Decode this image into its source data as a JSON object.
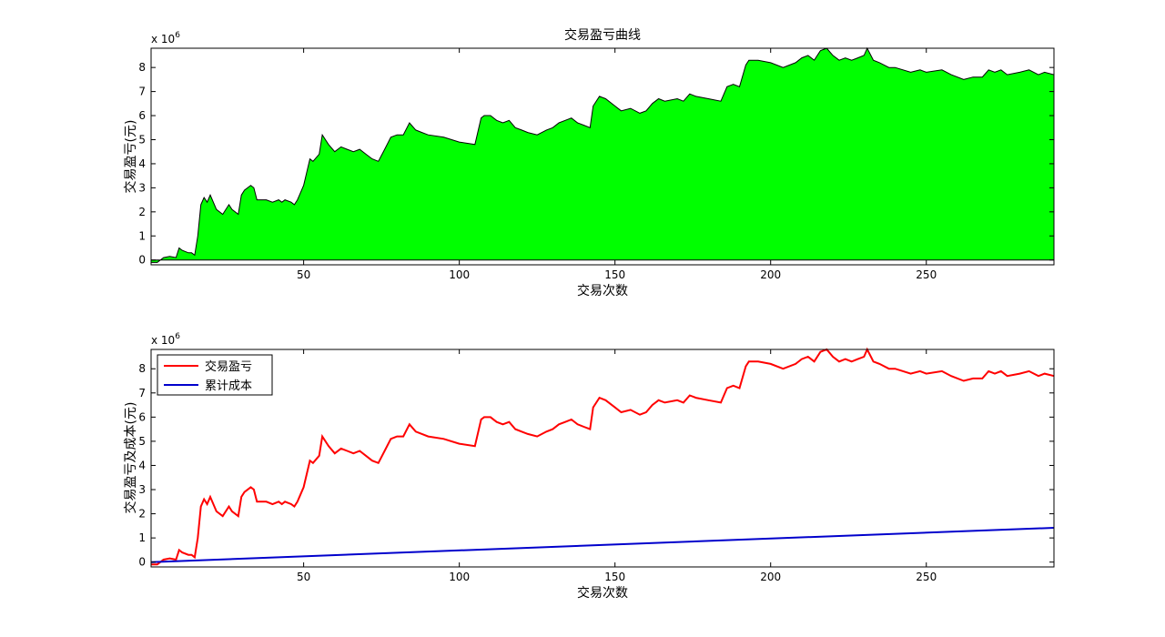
{
  "chart_data": [
    {
      "type": "area",
      "title": "交易盈亏曲线",
      "xlabel": "交易次数",
      "ylabel": "交易盈亏(元)",
      "scale_text": "x 10",
      "scale_exp": "6",
      "xlim": [
        1,
        291
      ],
      "ylim": [
        -0.2,
        8.8
      ],
      "x_ticks": [
        "50",
        "100",
        "150",
        "200",
        "250"
      ],
      "y_ticks": [
        "0",
        "1",
        "2",
        "3",
        "4",
        "5",
        "6",
        "7",
        "8"
      ],
      "grid": false,
      "fill_color": "#00ff00",
      "edge_color": "#000000",
      "series": [
        {
          "x": [
            1,
            3,
            5,
            7,
            9,
            10,
            11,
            13,
            14,
            15,
            16,
            17,
            18,
            19,
            20,
            22,
            24,
            26,
            27,
            29,
            30,
            31,
            33,
            34,
            35,
            38,
            40,
            42,
            43,
            44,
            46,
            47,
            48,
            49,
            50,
            52,
            53,
            55,
            56,
            58,
            60,
            62,
            64,
            66,
            68,
            70,
            72,
            74,
            76,
            78,
            80,
            82,
            84,
            86,
            88,
            90,
            95,
            100,
            105,
            107,
            108,
            110,
            112,
            114,
            116,
            118,
            120,
            122,
            125,
            128,
            130,
            132,
            134,
            136,
            138,
            140,
            142,
            143,
            145,
            147,
            150,
            152,
            155,
            158,
            160,
            162,
            164,
            166,
            170,
            172,
            174,
            176,
            180,
            184,
            186,
            188,
            190,
            192,
            193,
            196,
            200,
            204,
            208,
            210,
            212,
            214,
            216,
            218,
            220,
            222,
            224,
            226,
            228,
            230,
            231,
            233,
            235,
            238,
            240,
            245,
            248,
            250,
            255,
            258,
            262,
            265,
            268,
            270,
            272,
            274,
            276,
            280,
            283,
            286,
            288,
            291
          ],
          "values": [
            -0.1,
            -0.1,
            0.1,
            0.15,
            0.1,
            0.5,
            0.4,
            0.3,
            0.3,
            0.2,
            1.0,
            2.3,
            2.6,
            2.4,
            2.7,
            2.1,
            1.9,
            2.3,
            2.1,
            1.9,
            2.7,
            2.9,
            3.1,
            3.0,
            2.5,
            2.5,
            2.4,
            2.5,
            2.4,
            2.5,
            2.4,
            2.3,
            2.5,
            2.8,
            3.1,
            4.2,
            4.1,
            4.4,
            5.2,
            4.8,
            4.5,
            4.7,
            4.6,
            4.5,
            4.6,
            4.4,
            4.2,
            4.1,
            4.6,
            5.1,
            5.2,
            5.2,
            5.7,
            5.4,
            5.3,
            5.2,
            5.1,
            4.9,
            4.8,
            5.9,
            6.0,
            6.0,
            5.8,
            5.7,
            5.8,
            5.5,
            5.4,
            5.3,
            5.2,
            5.4,
            5.5,
            5.7,
            5.8,
            5.9,
            5.7,
            5.6,
            5.5,
            6.4,
            6.8,
            6.7,
            6.4,
            6.2,
            6.3,
            6.1,
            6.2,
            6.5,
            6.7,
            6.6,
            6.7,
            6.6,
            6.9,
            6.8,
            6.7,
            6.6,
            7.2,
            7.3,
            7.2,
            8.1,
            8.3,
            8.3,
            8.2,
            8.0,
            8.2,
            8.4,
            8.5,
            8.3,
            8.7,
            8.8,
            8.5,
            8.3,
            8.4,
            8.3,
            8.4,
            8.5,
            8.8,
            8.3,
            8.2,
            8.0,
            8.0,
            7.8,
            7.9,
            7.8,
            7.9,
            7.7,
            7.5,
            7.6,
            7.6,
            7.9,
            7.8,
            7.9,
            7.7,
            7.8,
            7.9,
            7.7,
            7.8,
            7.7
          ]
        }
      ]
    },
    {
      "type": "line",
      "title": "",
      "xlabel": "交易次数",
      "ylabel": "交易盈亏及成本(元)",
      "scale_text": "x 10",
      "scale_exp": "6",
      "xlim": [
        1,
        291
      ],
      "ylim": [
        -0.2,
        8.8
      ],
      "x_ticks": [
        "50",
        "100",
        "150",
        "200",
        "250"
      ],
      "y_ticks": [
        "0",
        "1",
        "2",
        "3",
        "4",
        "5",
        "6",
        "7",
        "8"
      ],
      "grid": false,
      "legend": "top-left",
      "series": [
        {
          "name": "交易盈亏",
          "color": "#ff0000",
          "x": [
            1,
            3,
            5,
            7,
            9,
            10,
            11,
            13,
            14,
            15,
            16,
            17,
            18,
            19,
            20,
            22,
            24,
            26,
            27,
            29,
            30,
            31,
            33,
            34,
            35,
            38,
            40,
            42,
            43,
            44,
            46,
            47,
            48,
            49,
            50,
            52,
            53,
            55,
            56,
            58,
            60,
            62,
            64,
            66,
            68,
            70,
            72,
            74,
            76,
            78,
            80,
            82,
            84,
            86,
            88,
            90,
            95,
            100,
            105,
            107,
            108,
            110,
            112,
            114,
            116,
            118,
            120,
            122,
            125,
            128,
            130,
            132,
            134,
            136,
            138,
            140,
            142,
            143,
            145,
            147,
            150,
            152,
            155,
            158,
            160,
            162,
            164,
            166,
            170,
            172,
            174,
            176,
            180,
            184,
            186,
            188,
            190,
            192,
            193,
            196,
            200,
            204,
            208,
            210,
            212,
            214,
            216,
            218,
            220,
            222,
            224,
            226,
            228,
            230,
            231,
            233,
            235,
            238,
            240,
            245,
            248,
            250,
            255,
            258,
            262,
            265,
            268,
            270,
            272,
            274,
            276,
            280,
            283,
            286,
            288,
            291
          ],
          "values": [
            -0.1,
            -0.1,
            0.1,
            0.15,
            0.1,
            0.5,
            0.4,
            0.3,
            0.3,
            0.2,
            1.0,
            2.3,
            2.6,
            2.4,
            2.7,
            2.1,
            1.9,
            2.3,
            2.1,
            1.9,
            2.7,
            2.9,
            3.1,
            3.0,
            2.5,
            2.5,
            2.4,
            2.5,
            2.4,
            2.5,
            2.4,
            2.3,
            2.5,
            2.8,
            3.1,
            4.2,
            4.1,
            4.4,
            5.2,
            4.8,
            4.5,
            4.7,
            4.6,
            4.5,
            4.6,
            4.4,
            4.2,
            4.1,
            4.6,
            5.1,
            5.2,
            5.2,
            5.7,
            5.4,
            5.3,
            5.2,
            5.1,
            4.9,
            4.8,
            5.9,
            6.0,
            6.0,
            5.8,
            5.7,
            5.8,
            5.5,
            5.4,
            5.3,
            5.2,
            5.4,
            5.5,
            5.7,
            5.8,
            5.9,
            5.7,
            5.6,
            5.5,
            6.4,
            6.8,
            6.7,
            6.4,
            6.2,
            6.3,
            6.1,
            6.2,
            6.5,
            6.7,
            6.6,
            6.7,
            6.6,
            6.9,
            6.8,
            6.7,
            6.6,
            7.2,
            7.3,
            7.2,
            8.1,
            8.3,
            8.3,
            8.2,
            8.0,
            8.2,
            8.4,
            8.5,
            8.3,
            8.7,
            8.8,
            8.5,
            8.3,
            8.4,
            8.3,
            8.4,
            8.5,
            8.8,
            8.3,
            8.2,
            8.0,
            8.0,
            7.8,
            7.9,
            7.8,
            7.9,
            7.7,
            7.5,
            7.6,
            7.6,
            7.9,
            7.8,
            7.9,
            7.7,
            7.8,
            7.9,
            7.7,
            7.8,
            7.7
          ]
        },
        {
          "name": "累计成本",
          "color": "#0000cc",
          "x": [
            1,
            291
          ],
          "values": [
            0.0,
            1.42
          ]
        }
      ]
    }
  ]
}
